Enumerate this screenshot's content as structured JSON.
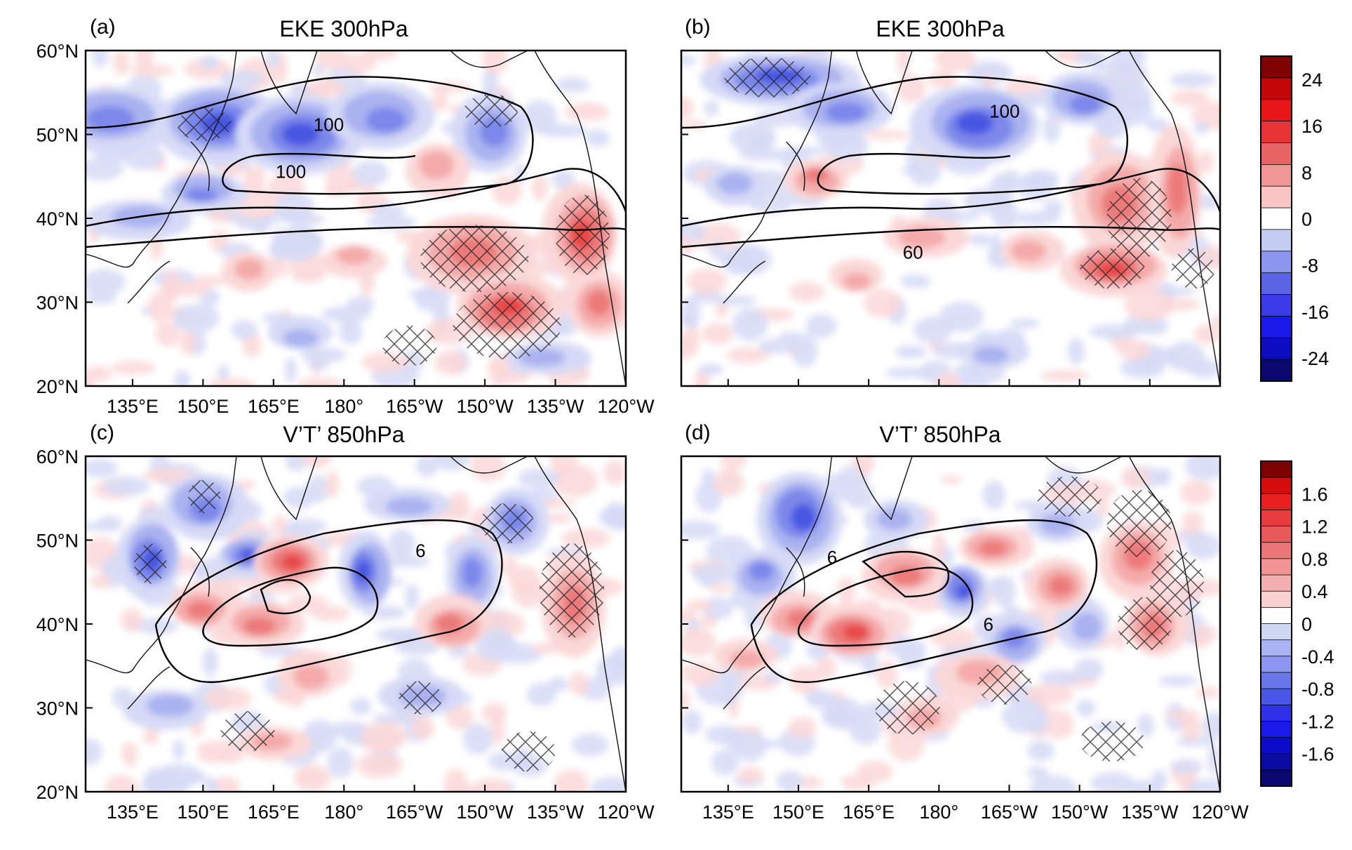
{
  "chart_data": [
    {
      "panel": "(a)",
      "title": "EKE 300hPa",
      "type": "heatmap",
      "x_ticks": [
        "135°E",
        "150°E",
        "165°E",
        "180°",
        "165°W",
        "150°W",
        "135°W",
        "120°W"
      ],
      "y_ticks": [
        "60°N",
        "50°N",
        "40°N",
        "30°N",
        "20°N"
      ],
      "xlim": [
        "125°E",
        "120°W"
      ],
      "ylim": [
        "20°N",
        "60°N"
      ],
      "contour_labels": [
        "100",
        "100"
      ],
      "hatching": "significant regions",
      "colorbar": "colorbar-a"
    },
    {
      "panel": "(b)",
      "title": "EKE 300hPa",
      "type": "heatmap",
      "x_ticks": [],
      "y_ticks": [],
      "xlim": [
        "125°E",
        "120°W"
      ],
      "ylim": [
        "20°N",
        "60°N"
      ],
      "contour_labels": [
        "100",
        "60"
      ],
      "hatching": "significant regions",
      "colorbar": "colorbar-a"
    },
    {
      "panel": "(c)",
      "title": "V’T’ 850hPa",
      "type": "heatmap",
      "x_ticks": [
        "135°E",
        "150°E",
        "165°E",
        "180°",
        "165°W",
        "150°W",
        "135°W",
        "120°W"
      ],
      "y_ticks": [
        "60°N",
        "50°N",
        "40°N",
        "30°N",
        "20°N"
      ],
      "xlim": [
        "125°E",
        "120°W"
      ],
      "ylim": [
        "20°N",
        "60°N"
      ],
      "contour_labels": [
        "6"
      ],
      "hatching": "significant regions",
      "colorbar": "colorbar-b"
    },
    {
      "panel": "(d)",
      "title": "V’T’ 850hPa",
      "type": "heatmap",
      "x_ticks": [
        "135°E",
        "150°E",
        "165°E",
        "180°",
        "165°W",
        "150°W",
        "135°W",
        "120°W"
      ],
      "y_ticks": [],
      "xlim": [
        "125°E",
        "120°W"
      ],
      "ylim": [
        "20°N",
        "60°N"
      ],
      "contour_labels": [
        "6",
        "6"
      ],
      "hatching": "significant regions",
      "colorbar": "colorbar-b"
    }
  ],
  "colorbars": [
    {
      "id": "colorbar-a",
      "labels": [
        "24",
        "16",
        "8",
        "0",
        "-8",
        "-16",
        "-24"
      ],
      "levels": [
        -28,
        -24,
        -20,
        -16,
        -12,
        -8,
        -4,
        0,
        4,
        8,
        12,
        16,
        20,
        24,
        28
      ],
      "colors": [
        "#08086e",
        "#0c0cc0",
        "#1a1ae8",
        "#3a3ae8",
        "#5a64e4",
        "#8c96ee",
        "#c4ccf4",
        "#ffffff",
        "#f8c4c4",
        "#f09696",
        "#e86464",
        "#e83434",
        "#e81616",
        "#c40808",
        "#7e0000"
      ]
    },
    {
      "id": "colorbar-b",
      "labels": [
        "1.6",
        "1.2",
        "0.8",
        "0.4",
        "0",
        "-0.4",
        "-0.8",
        "-1.2",
        "-1.6"
      ],
      "levels": [
        -2.0,
        -1.8,
        -1.6,
        -1.4,
        -1.2,
        -1.0,
        -0.8,
        -0.6,
        -0.4,
        -0.2,
        0,
        0.2,
        0.4,
        0.6,
        0.8,
        1.0,
        1.2,
        1.4,
        1.6,
        1.8,
        2.0
      ],
      "colors": [
        "#08086e",
        "#0a0aa4",
        "#0c0cc8",
        "#1a1ae8",
        "#3030e8",
        "#4a56e4",
        "#6a76e8",
        "#8c96ee",
        "#aab4f2",
        "#d0d6f6",
        "#ffffff",
        "#f8d0d0",
        "#f4b0b0",
        "#f09494",
        "#ec7676",
        "#e85a5a",
        "#e83c3c",
        "#e82020",
        "#d40c0c",
        "#7e0000"
      ]
    }
  ]
}
